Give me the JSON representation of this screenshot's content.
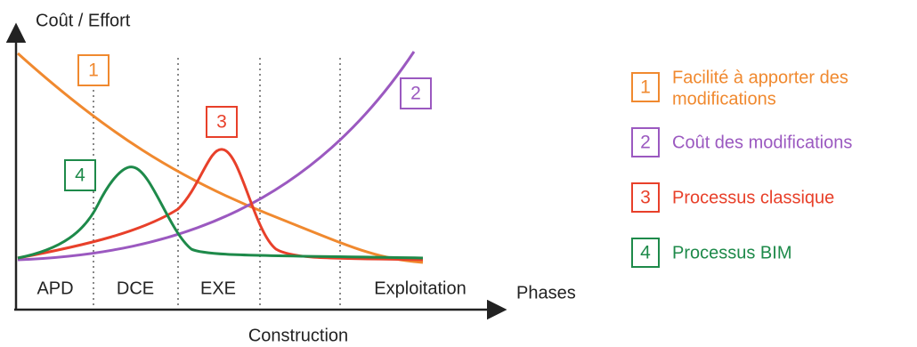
{
  "axes": {
    "y_label": "Coût / Effort",
    "x_label": "Phases"
  },
  "phases": [
    "APD",
    "DCE",
    "EXE",
    "Exploitation"
  ],
  "construction_label": "Construction",
  "curves": [
    {
      "number": "1",
      "lines": [
        "Facilité à apporter des",
        "modifications"
      ]
    },
    {
      "number": "2",
      "lines": [
        "Coût des modifications"
      ]
    },
    {
      "number": "3",
      "lines": [
        "Processus classique"
      ]
    },
    {
      "number": "4",
      "lines": [
        "Processus BIM"
      ]
    }
  ]
}
